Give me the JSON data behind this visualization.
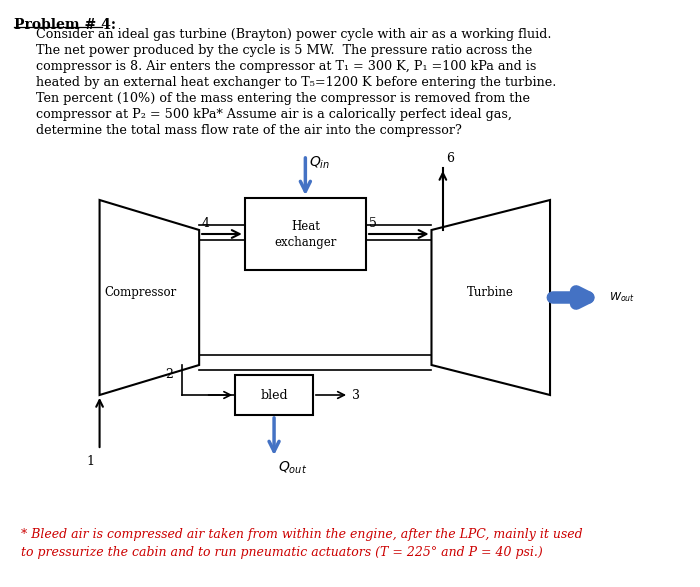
{
  "title": "Problem # 4:",
  "problem_text": [
    "Consider an ideal gas turbine (Brayton) power cycle with air as a working fluid.",
    "The net power produced by the cycle is 5 MW.  The pressure ratio across the",
    "compressor is 8. Air enters the compressor at T₁ = 300 K, P₁ =100 kPa and is",
    "heated by an external heat exchanger to T₅=1200 K before entering the turbine.",
    "Ten percent (10%) of the mass entering the compressor is removed from the",
    "compressor at P₂ = 500 kPa* Assume air is a calorically perfect ideal gas,",
    "determine the total mass flow rate of the air into the compressor?"
  ],
  "footnote_text": [
    "* Bleed air is compressed air taken from within the engine, after the LPC, mainly it used",
    "to pressurize the cabin and to run pneumatic actuators (T = 225° and P = 40 psi.)"
  ],
  "bg_color": "#ffffff",
  "text_color": "#000000",
  "red_color": "#cc0000",
  "blue_color": "#4472c4",
  "arrow_blue": "#4472c4"
}
